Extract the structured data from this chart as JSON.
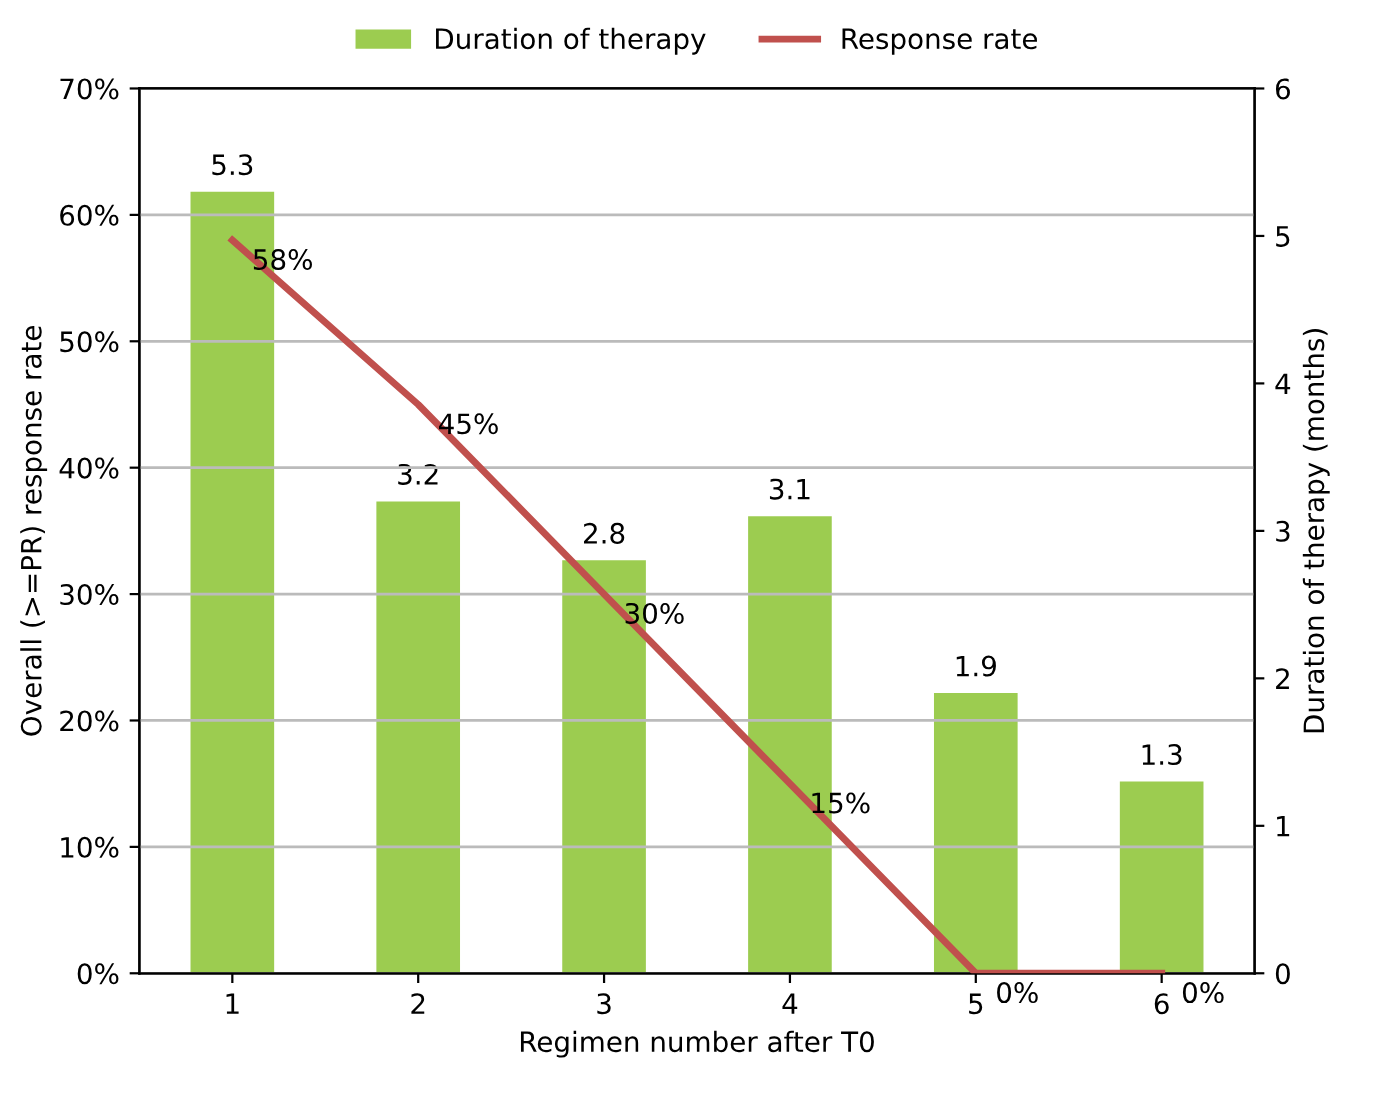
{
  "chart_data": {
    "type": "bar",
    "xlabel": "Regimen number after T0",
    "ylabel": "Overall (>=PR) response rate",
    "y2label": "Duration of therapy (months)",
    "categories": [
      "1",
      "2",
      "3",
      "4",
      "5",
      "6"
    ],
    "series": [
      {
        "name": "Duration of therapy",
        "axis": "y2",
        "color": "#9ccc50",
        "values": [
          5.3,
          3.2,
          2.8,
          3.1,
          1.9,
          1.3
        ],
        "value_labels": [
          "5.3",
          "3.2",
          "2.8",
          "3.1",
          "1.9",
          "1.3"
        ]
      },
      {
        "name": "Response rate",
        "type": "line",
        "axis": "y",
        "color": "#c0504d",
        "values": [
          58,
          45,
          30,
          15,
          0,
          0
        ],
        "value_labels": [
          "58%",
          "45%",
          "30%",
          "15%",
          "0%",
          "0%"
        ]
      }
    ],
    "ylim": [
      0,
      70
    ],
    "yticks": [
      {
        "value": 0,
        "label": "0%"
      },
      {
        "value": 10,
        "label": "10%"
      },
      {
        "value": 20,
        "label": "20%"
      },
      {
        "value": 30,
        "label": "30%"
      },
      {
        "value": 40,
        "label": "40%"
      },
      {
        "value": 50,
        "label": "50%"
      },
      {
        "value": 60,
        "label": "60%"
      },
      {
        "value": 70,
        "label": "70%"
      }
    ],
    "y2lim": [
      0,
      6
    ],
    "y2ticks": [
      0,
      1,
      2,
      3,
      4,
      5,
      6
    ],
    "grid": "y",
    "legend": "top",
    "marker": "none",
    "line_style": "solid"
  }
}
